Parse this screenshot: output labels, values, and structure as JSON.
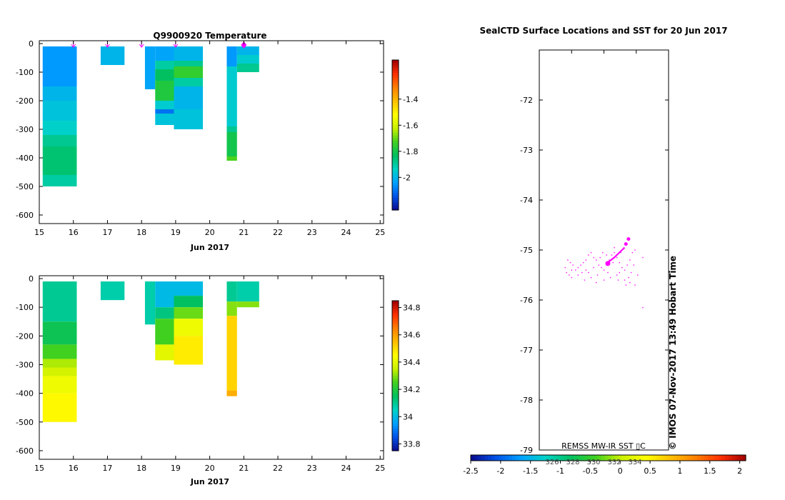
{
  "colors": {
    "temp_scale": [
      "#0a0a8c",
      "#0050e6",
      "#00a0ff",
      "#00d2c8",
      "#00c060",
      "#40d020",
      "#c8f000",
      "#ffff00",
      "#ffc000",
      "#ff8000",
      "#ff3000",
      "#a00000"
    ],
    "marker": "#ff00ff",
    "axis": "#000000"
  },
  "chart_data": [
    {
      "id": "temperature",
      "type": "heatmap",
      "title": "Q9900920  Temperature",
      "xlabel": "Jun 2017",
      "x_ticks": [
        "15",
        "16",
        "17",
        "18",
        "19",
        "20",
        "21",
        "22",
        "23",
        "24",
        "25"
      ],
      "xlim": [
        15,
        25.1
      ],
      "ylim": [
        -630,
        10
      ],
      "y_ticks": [
        0,
        -100,
        -200,
        -300,
        -400,
        -500,
        -600
      ],
      "colorbar": {
        "range": [
          -2.25,
          -1.1
        ],
        "ticks": [
          -1.4,
          -1.6,
          -1.8,
          -2
        ]
      },
      "arrows": [
        16,
        17,
        18,
        19
      ],
      "diamond": 21,
      "profiles": [
        {
          "x0": 15.1,
          "x1": 16.1,
          "segments": [
            {
              "top": -10,
              "bottom": -150,
              "value": -2.05
            },
            {
              "top": -150,
              "bottom": -200,
              "value": -2.0
            },
            {
              "top": -200,
              "bottom": -270,
              "value": -1.97
            },
            {
              "top": -270,
              "bottom": -320,
              "value": -1.94
            },
            {
              "top": -320,
              "bottom": -360,
              "value": -1.88
            },
            {
              "top": -360,
              "bottom": -460,
              "value": -1.85
            },
            {
              "top": -460,
              "bottom": -500,
              "value": -1.9
            }
          ]
        },
        {
          "x0": 16.8,
          "x1": 17.5,
          "segments": [
            {
              "top": -10,
              "bottom": -75,
              "value": -2.0
            }
          ]
        },
        {
          "x0": 18.1,
          "x1": 18.4,
          "segments": [
            {
              "top": -10,
              "bottom": -160,
              "value": -2.03
            }
          ]
        },
        {
          "x0": 18.4,
          "x1": 18.95,
          "segments": [
            {
              "top": -10,
              "bottom": -60,
              "value": -2.03
            },
            {
              "top": -60,
              "bottom": -90,
              "value": -1.9
            },
            {
              "top": -90,
              "bottom": -130,
              "value": -1.83
            },
            {
              "top": -130,
              "bottom": -200,
              "value": -1.78
            },
            {
              "top": -200,
              "bottom": -230,
              "value": -1.95
            },
            {
              "top": -230,
              "bottom": -245,
              "value": -2.1
            },
            {
              "top": -245,
              "bottom": -285,
              "value": -1.97
            }
          ]
        },
        {
          "x0": 18.95,
          "x1": 19.8,
          "segments": [
            {
              "top": -10,
              "bottom": -60,
              "value": -2.0
            },
            {
              "top": -60,
              "bottom": -80,
              "value": -1.88
            },
            {
              "top": -80,
              "bottom": -120,
              "value": -1.75
            },
            {
              "top": -120,
              "bottom": -150,
              "value": -1.9
            },
            {
              "top": -150,
              "bottom": -230,
              "value": -2.0
            },
            {
              "top": -230,
              "bottom": -300,
              "value": -1.97
            }
          ]
        },
        {
          "x0": 20.5,
          "x1": 20.8,
          "segments": [
            {
              "top": -10,
              "bottom": -80,
              "value": -2.05
            },
            {
              "top": -80,
              "bottom": -290,
              "value": -1.95
            },
            {
              "top": -290,
              "bottom": -310,
              "value": -1.88
            },
            {
              "top": -310,
              "bottom": -395,
              "value": -1.8
            },
            {
              "top": -395,
              "bottom": -410,
              "value": -1.72
            }
          ]
        },
        {
          "x0": 20.8,
          "x1": 21.45,
          "segments": [
            {
              "top": -10,
              "bottom": -40,
              "value": -2.0
            },
            {
              "top": -40,
              "bottom": -70,
              "value": -1.95
            },
            {
              "top": -70,
              "bottom": -100,
              "value": -1.88
            }
          ]
        }
      ]
    },
    {
      "id": "salinity",
      "type": "heatmap",
      "xlabel": "Jun 2017",
      "x_ticks": [
        "15",
        "16",
        "17",
        "18",
        "19",
        "20",
        "21",
        "22",
        "23",
        "24",
        "25"
      ],
      "xlim": [
        15,
        25.1
      ],
      "ylim": [
        -630,
        10
      ],
      "y_ticks": [
        0,
        -100,
        -200,
        -300,
        -400,
        -500,
        -600
      ],
      "colorbar": {
        "range": [
          33.75,
          34.85
        ],
        "ticks": [
          34.8,
          34.6,
          34.4,
          34.2,
          34,
          33.8
        ]
      },
      "profiles": [
        {
          "x0": 15.1,
          "x1": 16.1,
          "segments": [
            {
              "top": -10,
              "bottom": -150,
              "value": 34.1
            },
            {
              "top": -150,
              "bottom": -230,
              "value": 34.17
            },
            {
              "top": -230,
              "bottom": -280,
              "value": 34.25
            },
            {
              "top": -280,
              "bottom": -310,
              "value": 34.33
            },
            {
              "top": -310,
              "bottom": -340,
              "value": 34.37
            },
            {
              "top": -340,
              "bottom": -400,
              "value": 34.42
            },
            {
              "top": -400,
              "bottom": -500,
              "value": 34.46
            }
          ]
        },
        {
          "x0": 16.8,
          "x1": 17.5,
          "segments": [
            {
              "top": -10,
              "bottom": -75,
              "value": 34.08
            }
          ]
        },
        {
          "x0": 18.1,
          "x1": 18.4,
          "segments": [
            {
              "top": -10,
              "bottom": -160,
              "value": 34.08
            }
          ]
        },
        {
          "x0": 18.4,
          "x1": 18.95,
          "segments": [
            {
              "top": -10,
              "bottom": -100,
              "value": 34.0
            },
            {
              "top": -100,
              "bottom": -140,
              "value": 34.12
            },
            {
              "top": -140,
              "bottom": -230,
              "value": 34.25
            },
            {
              "top": -230,
              "bottom": -285,
              "value": 34.4
            }
          ]
        },
        {
          "x0": 18.95,
          "x1": 19.8,
          "segments": [
            {
              "top": -10,
              "bottom": -60,
              "value": 34.0
            },
            {
              "top": -60,
              "bottom": -100,
              "value": 34.15
            },
            {
              "top": -100,
              "bottom": -140,
              "value": 34.28
            },
            {
              "top": -140,
              "bottom": -200,
              "value": 34.42
            },
            {
              "top": -200,
              "bottom": -300,
              "value": 34.48
            }
          ]
        },
        {
          "x0": 20.5,
          "x1": 20.8,
          "segments": [
            {
              "top": -10,
              "bottom": -80,
              "value": 34.1
            },
            {
              "top": -80,
              "bottom": -130,
              "value": 34.3
            },
            {
              "top": -130,
              "bottom": -390,
              "value": 34.52
            },
            {
              "top": -390,
              "bottom": -410,
              "value": 34.58
            }
          ]
        },
        {
          "x0": 20.8,
          "x1": 21.45,
          "segments": [
            {
              "top": -10,
              "bottom": -80,
              "value": 34.08
            },
            {
              "top": -80,
              "bottom": -100,
              "value": 34.3
            }
          ]
        }
      ]
    },
    {
      "id": "map",
      "type": "scatter",
      "title": "SealCTD Surface Locations and SST for 20 Jun 2017",
      "ylim": [
        -79,
        -71
      ],
      "xlim": [
        0,
        1
      ],
      "y_ticks": [
        -72,
        -73,
        -74,
        -75,
        -76,
        -77,
        -78,
        -79
      ],
      "side_label": "© IMOS 07-Nov-2017 13:49 Hobart Time",
      "inner_label": "REMSS MW-IR SST ▯C",
      "sst_colorbar": {
        "range": [
          -2.5,
          2.1
        ],
        "ticks": [
          "-2.5",
          "-2",
          "-1.5",
          "-1",
          "-0.5",
          "0",
          "0.5",
          "1",
          "1.5",
          "2"
        ],
        "ghost_ticks": [
          "326",
          "328",
          "330",
          "332",
          "334"
        ]
      },
      "track_points": [
        [
          0.22,
          -75.2
        ],
        [
          0.24,
          -75.25
        ],
        [
          0.26,
          -75.3
        ],
        [
          0.2,
          -75.35
        ],
        [
          0.21,
          -75.45
        ],
        [
          0.23,
          -75.5
        ],
        [
          0.25,
          -75.55
        ],
        [
          0.28,
          -75.4
        ],
        [
          0.3,
          -75.35
        ],
        [
          0.32,
          -75.3
        ],
        [
          0.34,
          -75.25
        ],
        [
          0.36,
          -75.2
        ],
        [
          0.38,
          -75.1
        ],
        [
          0.4,
          -75.05
        ],
        [
          0.42,
          -75.15
        ],
        [
          0.44,
          -75.2
        ],
        [
          0.46,
          -75.3
        ],
        [
          0.48,
          -75.35
        ],
        [
          0.5,
          -75.4
        ],
        [
          0.52,
          -75.3
        ],
        [
          0.54,
          -75.2
        ],
        [
          0.56,
          -75.1
        ],
        [
          0.58,
          -75.05
        ],
        [
          0.6,
          -75.15
        ],
        [
          0.62,
          -75.25
        ],
        [
          0.64,
          -75.35
        ],
        [
          0.66,
          -75.4
        ],
        [
          0.68,
          -75.3
        ],
        [
          0.7,
          -75.2
        ],
        [
          0.72,
          -75.05
        ],
        [
          0.74,
          -75.0
        ],
        [
          0.73,
          -75.3
        ],
        [
          0.71,
          -75.45
        ],
        [
          0.69,
          -75.55
        ],
        [
          0.66,
          -75.6
        ],
        [
          0.6,
          -75.5
        ],
        [
          0.55,
          -75.55
        ],
        [
          0.5,
          -75.6
        ],
        [
          0.45,
          -75.5
        ],
        [
          0.4,
          -75.55
        ],
        [
          0.35,
          -75.6
        ],
        [
          0.38,
          -75.45
        ],
        [
          0.42,
          -75.35
        ],
        [
          0.47,
          -75.15
        ],
        [
          0.52,
          -75.1
        ],
        [
          0.57,
          -75.25
        ],
        [
          0.62,
          -75.45
        ],
        [
          0.67,
          -75.7
        ],
        [
          0.7,
          -75.65
        ],
        [
          0.74,
          -75.7
        ],
        [
          0.44,
          -75.65
        ],
        [
          0.36,
          -75.4
        ],
        [
          0.58,
          -74.95
        ],
        [
          0.63,
          -75.05
        ],
        [
          0.65,
          -74.98
        ],
        [
          0.8,
          -75.15
        ],
        [
          0.25,
          -75.4
        ],
        [
          0.3,
          -75.5
        ],
        [
          0.33,
          -75.45
        ],
        [
          0.49,
          -75.05
        ],
        [
          0.53,
          -75.45
        ],
        [
          0.61,
          -75.6
        ],
        [
          0.76,
          -75.5
        ],
        [
          0.8,
          -76.15
        ]
      ],
      "track_line": [
        [
          0.66,
          -74.95
        ],
        [
          0.62,
          -75.05
        ],
        [
          0.58,
          -75.15
        ],
        [
          0.53,
          -75.25
        ]
      ],
      "big_points": [
        [
          0.53,
          -75.27
        ],
        [
          0.67,
          -74.88
        ],
        [
          0.69,
          -74.78
        ]
      ]
    }
  ]
}
